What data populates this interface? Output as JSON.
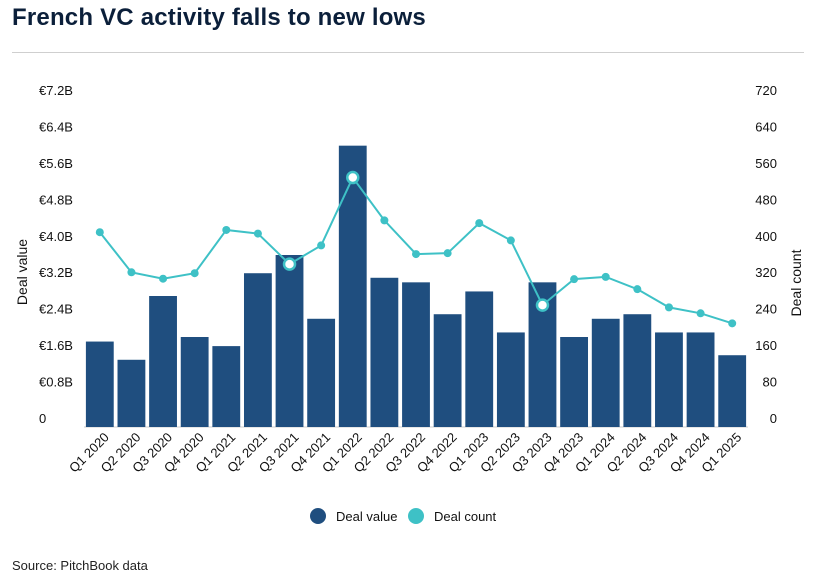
{
  "title": "French VC activity falls to new lows",
  "source": "Source: PitchBook data",
  "colors": {
    "bar": "#1f4e7f",
    "line": "#3ec1c6",
    "text": "#111111",
    "axis": "#cccccc"
  },
  "chart_data": {
    "type": "bar+line",
    "categories": [
      "Q1 2020",
      "Q2 2020",
      "Q3 2020",
      "Q4 2020",
      "Q1 2021",
      "Q2 2021",
      "Q3 2021",
      "Q4 2021",
      "Q1 2022",
      "Q2 2022",
      "Q3 2022",
      "Q4 2022",
      "Q1 2023",
      "Q2 2023",
      "Q3 2023",
      "Q4 2023",
      "Q1 2024",
      "Q2 2024",
      "Q3 2024",
      "Q4 2024",
      "Q1 2025"
    ],
    "series": [
      {
        "name": "Deal value",
        "type": "bar",
        "axis": "left",
        "values": [
          1.7,
          1.3,
          2.7,
          1.8,
          1.6,
          3.2,
          3.6,
          2.2,
          6.0,
          3.1,
          3.0,
          2.3,
          2.8,
          1.9,
          3.0,
          1.8,
          2.2,
          2.3,
          1.9,
          1.9,
          1.4
        ]
      },
      {
        "name": "Deal count",
        "type": "line",
        "axis": "right",
        "values": [
          410,
          322,
          308,
          320,
          415,
          407,
          340,
          381,
          530,
          436,
          362,
          364,
          430,
          392,
          250,
          307,
          312,
          285,
          245,
          232,
          210
        ]
      }
    ],
    "highlighted_points": [
      6,
      8,
      14
    ],
    "y_left": {
      "label": "Deal value",
      "min": 0,
      "max": 7.2,
      "ticks": [
        "0",
        "€0.8B",
        "€1.6B",
        "€2.4B",
        "€3.2B",
        "€4.0B",
        "€4.8B",
        "€5.6B",
        "€6.4B",
        "€7.2B"
      ]
    },
    "y_right": {
      "label": "Deal count",
      "min": 0,
      "max": 720,
      "ticks": [
        "0",
        "80",
        "160",
        "240",
        "320",
        "400",
        "480",
        "560",
        "640",
        "720"
      ]
    },
    "legend": {
      "position": "bottom",
      "items": [
        "Deal value",
        "Deal count"
      ]
    }
  }
}
